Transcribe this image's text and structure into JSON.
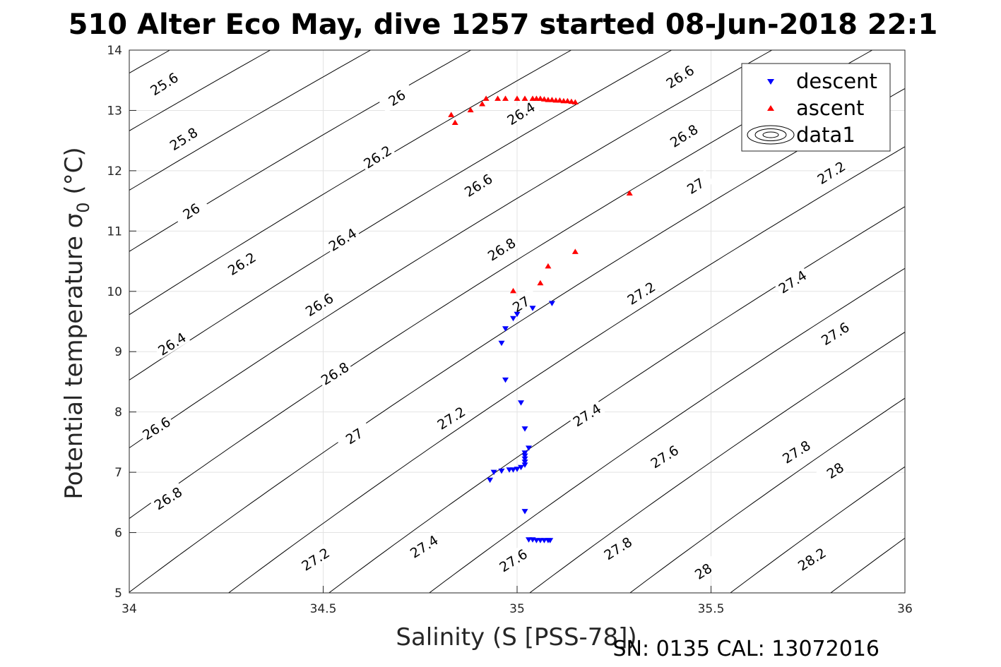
{
  "chart_data": {
    "type": "scatter",
    "title": "510 Alter Eco May, dive 1257 started 08-Jun-2018 22:1",
    "xlabel": "Salinity (S [PSS-78])",
    "ylabel": "Potential temperature σ",
    "ylabel_sub": "0",
    "ylabel_unit": " (°C)",
    "footer": "SN: 0135  CAL: 13072016",
    "xlim": [
      34,
      36
    ],
    "ylim": [
      5,
      14
    ],
    "x_ticks": [
      34,
      34.5,
      35,
      35.5,
      36
    ],
    "x_tick_labels": [
      "34",
      "34.5",
      "35",
      "35.5",
      "36"
    ],
    "y_ticks": [
      5,
      6,
      7,
      8,
      9,
      10,
      11,
      12,
      13,
      14
    ],
    "y_tick_labels": [
      "5",
      "6",
      "7",
      "8",
      "9",
      "10",
      "11",
      "12",
      "13",
      "14"
    ],
    "grid": true,
    "legend_position": "top-right",
    "legend": [
      "descent",
      "ascent",
      "data1"
    ],
    "colors": {
      "descent": "#0000ff",
      "ascent": "#ff0000",
      "contour": "#000000",
      "grid": "#e3e3e3",
      "axis": "#262626"
    },
    "series": [
      {
        "name": "descent",
        "marker": "triangle-down",
        "color": "#0000ff",
        "points": [
          [
            35.09,
            9.8
          ],
          [
            35.04,
            9.72
          ],
          [
            35.0,
            9.62
          ],
          [
            34.99,
            9.55
          ],
          [
            34.97,
            9.38
          ],
          [
            34.96,
            9.14
          ],
          [
            34.97,
            8.53
          ],
          [
            35.01,
            8.15
          ],
          [
            35.02,
            7.72
          ],
          [
            35.03,
            7.4
          ],
          [
            35.02,
            7.32
          ],
          [
            35.02,
            7.27
          ],
          [
            35.02,
            7.22
          ],
          [
            35.02,
            7.17
          ],
          [
            35.02,
            7.12
          ],
          [
            35.01,
            7.08
          ],
          [
            35.0,
            7.05
          ],
          [
            34.99,
            7.04
          ],
          [
            34.98,
            7.04
          ],
          [
            34.96,
            7.02
          ],
          [
            34.94,
            7.0
          ],
          [
            34.93,
            6.87
          ],
          [
            35.02,
            6.35
          ],
          [
            35.03,
            5.88
          ],
          [
            35.04,
            5.88
          ],
          [
            35.05,
            5.87
          ],
          [
            35.06,
            5.87
          ],
          [
            35.07,
            5.87
          ],
          [
            35.08,
            5.87
          ],
          [
            35.085,
            5.87
          ]
        ]
      },
      {
        "name": "ascent",
        "marker": "triangle-up",
        "color": "#ff0000",
        "points": [
          [
            35.29,
            11.63
          ],
          [
            35.15,
            10.66
          ],
          [
            35.08,
            10.42
          ],
          [
            35.06,
            10.14
          ],
          [
            34.99,
            10.01
          ],
          [
            34.83,
            12.93
          ],
          [
            34.84,
            12.8
          ],
          [
            34.88,
            13.01
          ],
          [
            34.91,
            13.11
          ],
          [
            34.92,
            13.2
          ],
          [
            34.95,
            13.2
          ],
          [
            34.97,
            13.2
          ],
          [
            35.0,
            13.2
          ],
          [
            35.02,
            13.2
          ],
          [
            35.04,
            13.2
          ],
          [
            35.05,
            13.2
          ],
          [
            35.06,
            13.2
          ],
          [
            35.07,
            13.19
          ],
          [
            35.08,
            13.18
          ],
          [
            35.09,
            13.18
          ],
          [
            35.1,
            13.17
          ],
          [
            35.11,
            13.17
          ],
          [
            35.12,
            13.16
          ],
          [
            35.13,
            13.16
          ],
          [
            35.14,
            13.15
          ],
          [
            35.15,
            13.14
          ]
        ]
      }
    ],
    "contour_levels": [
      25.6,
      25.8,
      26,
      26.2,
      26.4,
      26.6,
      26.8,
      27,
      27.2,
      27.4,
      27.6,
      27.8,
      28,
      28.2
    ],
    "contour_labels": [
      {
        "text": "25.6",
        "x": 34.09,
        "y": 13.44
      },
      {
        "text": "25.8",
        "x": 34.14,
        "y": 12.53
      },
      {
        "text": "26",
        "x": 34.16,
        "y": 11.33
      },
      {
        "text": "26.2",
        "x": 34.29,
        "y": 10.46
      },
      {
        "text": "26.4",
        "x": 34.11,
        "y": 9.13
      },
      {
        "text": "26.6",
        "x": 34.07,
        "y": 7.73
      },
      {
        "text": "26.8",
        "x": 34.1,
        "y": 6.57
      },
      {
        "text": "26",
        "x": 34.69,
        "y": 13.21
      },
      {
        "text": "26.2",
        "x": 34.64,
        "y": 12.23
      },
      {
        "text": "26.4",
        "x": 34.55,
        "y": 10.86
      },
      {
        "text": "26.6",
        "x": 34.49,
        "y": 9.78
      },
      {
        "text": "26.8",
        "x": 34.53,
        "y": 8.64
      },
      {
        "text": "27",
        "x": 34.58,
        "y": 7.6
      },
      {
        "text": "27.2",
        "x": 34.48,
        "y": 5.56
      },
      {
        "text": "26.4",
        "x": 35.01,
        "y": 12.95
      },
      {
        "text": "26.6",
        "x": 34.9,
        "y": 11.76
      },
      {
        "text": "26.8",
        "x": 34.96,
        "y": 10.7
      },
      {
        "text": "27",
        "x": 35.01,
        "y": 9.79
      },
      {
        "text": "27.2",
        "x": 34.83,
        "y": 7.9
      },
      {
        "text": "27.4",
        "x": 34.76,
        "y": 5.77
      },
      {
        "text": "27.6",
        "x": 34.99,
        "y": 5.54
      },
      {
        "text": "26.6",
        "x": 35.42,
        "y": 13.56
      },
      {
        "text": "26.8",
        "x": 35.43,
        "y": 12.58
      },
      {
        "text": "27",
        "x": 35.46,
        "y": 11.75
      },
      {
        "text": "27.2",
        "x": 35.32,
        "y": 9.97
      },
      {
        "text": "27.4",
        "x": 35.18,
        "y": 7.95
      },
      {
        "text": "27.6",
        "x": 35.38,
        "y": 7.26
      },
      {
        "text": "27.8",
        "x": 35.26,
        "y": 5.74
      },
      {
        "text": "27.2",
        "x": 35.81,
        "y": 11.97
      },
      {
        "text": "27.4",
        "x": 35.71,
        "y": 10.16
      },
      {
        "text": "27.6",
        "x": 35.82,
        "y": 9.3
      },
      {
        "text": "27.8",
        "x": 35.72,
        "y": 7.34
      },
      {
        "text": "28",
        "x": 35.82,
        "y": 7.03
      },
      {
        "text": "28",
        "x": 35.48,
        "y": 5.36
      },
      {
        "text": "28.2",
        "x": 35.76,
        "y": 5.56
      }
    ]
  }
}
